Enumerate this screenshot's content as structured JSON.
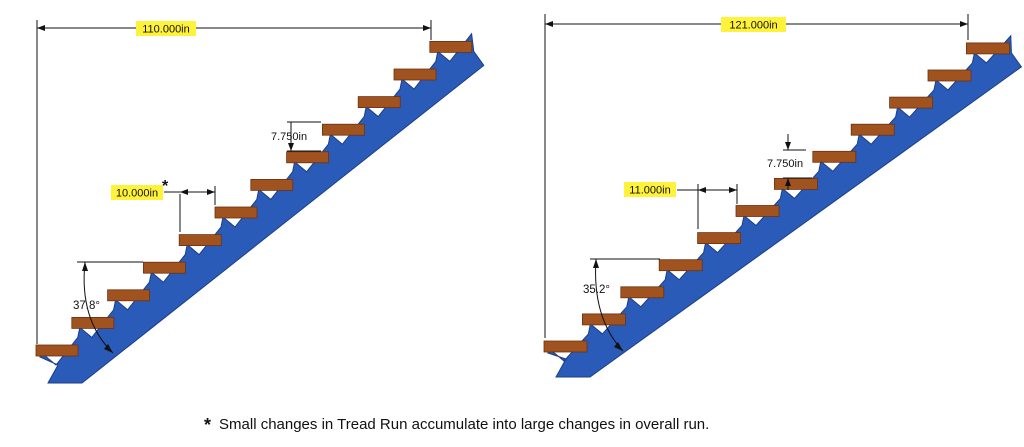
{
  "colors": {
    "stringer": "#2a5bb8",
    "stringer_edge": "#1b3f86",
    "tread": "#a0521f",
    "tread_edge": "#6b3210",
    "highlight": "#fff23a"
  },
  "stairs": [
    {
      "overall_run": "110.000in",
      "tread_run": "10.000in",
      "tread_run_star": "*",
      "riser": "7.750in",
      "angle": "37.8°"
    },
    {
      "overall_run": "121.000in",
      "tread_run": "11.000in",
      "riser": "7.750in",
      "angle": "35.2°"
    }
  ],
  "footnote": {
    "star": "*",
    "text": "Small changes in Tread Run accumulate into large changes in overall run."
  }
}
